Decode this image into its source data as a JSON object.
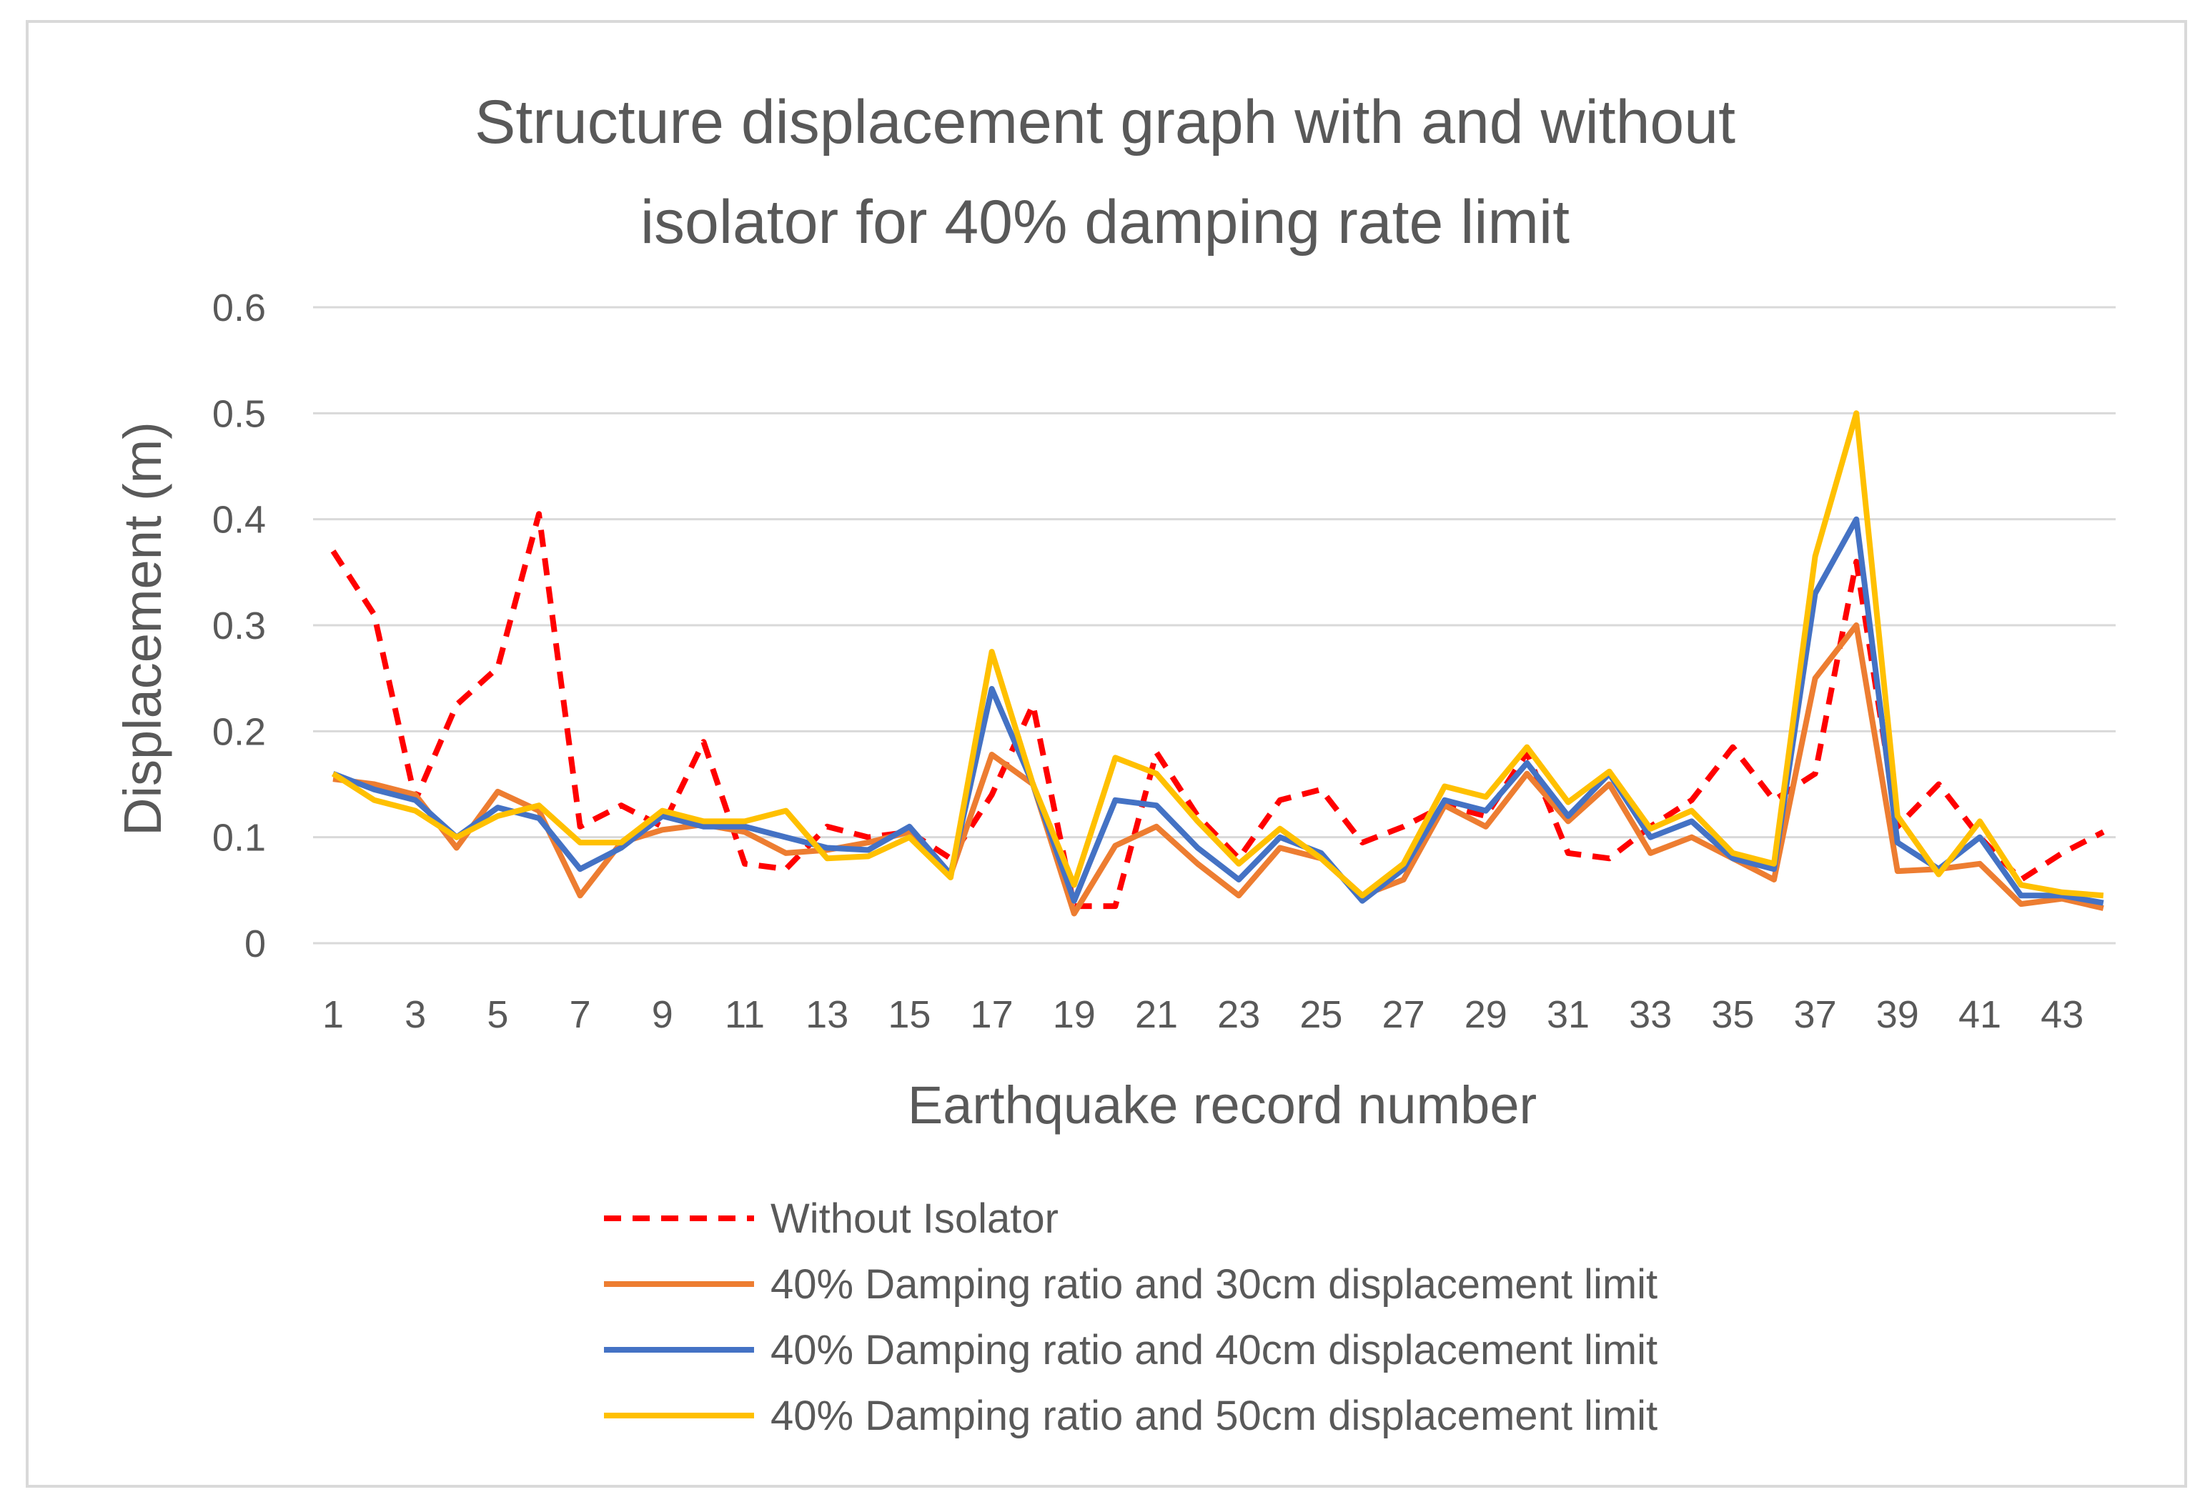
{
  "chart_data": {
    "type": "line",
    "title_lines": [
      "Structure displacement graph with and without",
      "isolator for 40% damping rate limit"
    ],
    "xlabel": "Earthquake record number",
    "ylabel": "Displacement (m)",
    "ylim": [
      0,
      0.6
    ],
    "yticks": [
      "0",
      "0.1",
      "0.2",
      "0.3",
      "0.4",
      "0.5",
      "0.6"
    ],
    "x": [
      1,
      2,
      3,
      4,
      5,
      6,
      7,
      8,
      9,
      10,
      11,
      12,
      13,
      14,
      15,
      16,
      17,
      18,
      19,
      20,
      21,
      22,
      23,
      24,
      25,
      26,
      27,
      28,
      29,
      30,
      31,
      32,
      33,
      34,
      35,
      36,
      37,
      38,
      39,
      40,
      41,
      42,
      43,
      44
    ],
    "xtick_labels": [
      "1",
      "3",
      "5",
      "7",
      "9",
      "11",
      "13",
      "15",
      "17",
      "19",
      "21",
      "23",
      "25",
      "27",
      "29",
      "31",
      "33",
      "35",
      "37",
      "39",
      "41",
      "43"
    ],
    "grid": true,
    "legend_position": "bottom",
    "series": [
      {
        "name": "Without Isolator",
        "color": "#ff0000",
        "style": "dashed",
        "values": [
          0.37,
          0.31,
          0.135,
          0.225,
          0.26,
          0.405,
          0.11,
          0.13,
          0.11,
          0.19,
          0.075,
          0.07,
          0.11,
          0.1,
          0.105,
          0.08,
          0.14,
          0.225,
          0.035,
          0.035,
          0.18,
          0.12,
          0.08,
          0.135,
          0.145,
          0.095,
          0.11,
          0.13,
          0.12,
          0.18,
          0.085,
          0.08,
          0.11,
          0.135,
          0.185,
          0.135,
          0.16,
          0.36,
          0.11,
          0.15,
          0.1,
          0.06,
          0.085,
          0.105
        ]
      },
      {
        "name": "40% Damping ratio and 30cm displacement limit",
        "color": "#ed7d31",
        "style": "solid",
        "values": [
          0.155,
          0.15,
          0.14,
          0.09,
          0.143,
          0.125,
          0.045,
          0.095,
          0.107,
          0.112,
          0.105,
          0.085,
          0.088,
          0.095,
          0.105,
          0.065,
          0.178,
          0.15,
          0.028,
          0.092,
          0.11,
          0.075,
          0.045,
          0.09,
          0.08,
          0.045,
          0.06,
          0.13,
          0.11,
          0.16,
          0.115,
          0.15,
          0.085,
          0.1,
          0.08,
          0.06,
          0.25,
          0.3,
          0.068,
          0.07,
          0.075,
          0.037,
          0.042,
          0.033
        ]
      },
      {
        "name": "40% Damping ratio and 40cm displacement limit",
        "color": "#4472c4",
        "style": "solid",
        "values": [
          0.16,
          0.145,
          0.135,
          0.1,
          0.128,
          0.118,
          0.07,
          0.09,
          0.12,
          0.11,
          0.11,
          0.1,
          0.09,
          0.088,
          0.11,
          0.065,
          0.24,
          0.15,
          0.04,
          0.135,
          0.13,
          0.09,
          0.06,
          0.1,
          0.085,
          0.04,
          0.07,
          0.135,
          0.125,
          0.17,
          0.12,
          0.16,
          0.1,
          0.115,
          0.08,
          0.07,
          0.33,
          0.4,
          0.095,
          0.07,
          0.1,
          0.045,
          0.045,
          0.038
        ]
      },
      {
        "name": "40% Damping ratio and 50cm displacement limit",
        "color": "#ffc000",
        "style": "solid",
        "values": [
          0.16,
          0.135,
          0.125,
          0.1,
          0.12,
          0.13,
          0.095,
          0.095,
          0.125,
          0.115,
          0.115,
          0.125,
          0.08,
          0.082,
          0.1,
          0.062,
          0.275,
          0.15,
          0.055,
          0.175,
          0.16,
          0.115,
          0.075,
          0.108,
          0.08,
          0.045,
          0.075,
          0.148,
          0.138,
          0.185,
          0.133,
          0.162,
          0.108,
          0.125,
          0.085,
          0.075,
          0.365,
          0.5,
          0.12,
          0.065,
          0.115,
          0.055,
          0.048,
          0.045
        ]
      }
    ]
  }
}
